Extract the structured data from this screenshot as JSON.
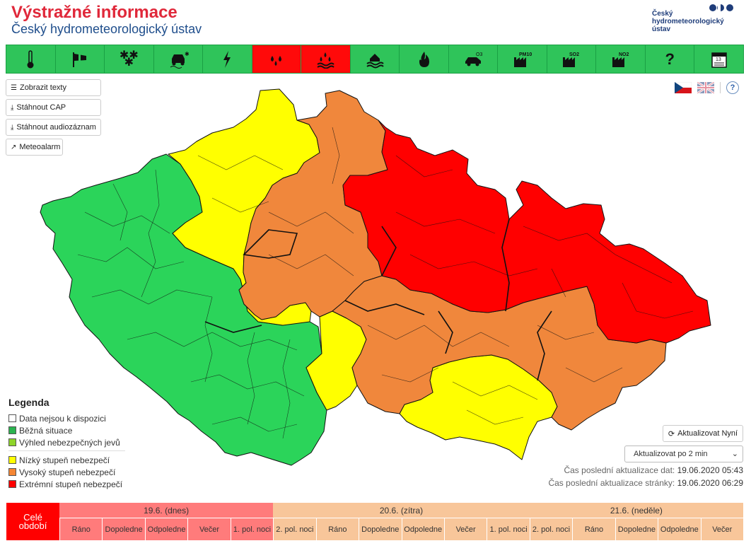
{
  "header": {
    "title": "Výstražné informace",
    "subtitle": "Český hydrometeorologický ústav",
    "logo_lines": [
      "Český",
      "hydrometeorologický",
      "ústav"
    ]
  },
  "toolbar": {
    "items": [
      {
        "icon": "thermometer-icon",
        "active": false
      },
      {
        "icon": "windsock-icon",
        "active": false
      },
      {
        "icon": "snowflakes-icon",
        "active": false
      },
      {
        "icon": "slippery-road-icon",
        "active": false
      },
      {
        "icon": "lightning-icon",
        "active": false
      },
      {
        "icon": "rain-drops-icon",
        "active": true
      },
      {
        "icon": "flood-icon",
        "active": true
      },
      {
        "icon": "flood-house-icon",
        "active": false
      },
      {
        "icon": "fire-icon",
        "active": false
      },
      {
        "icon": "ozone-car-icon",
        "active": false,
        "label": "O3"
      },
      {
        "icon": "pm10-factory-icon",
        "active": false,
        "label": "PM10"
      },
      {
        "icon": "so2-factory-icon",
        "active": false,
        "label": "SO2"
      },
      {
        "icon": "no2-factory-icon",
        "active": false,
        "label": "NO2"
      },
      {
        "icon": "question-icon",
        "active": false,
        "label": "?"
      },
      {
        "icon": "calendar-icon",
        "active": false,
        "label": "13"
      }
    ]
  },
  "buttons": {
    "show_texts": "Zobrazit texty",
    "download_cap": "Stáhnout CAP",
    "download_audio": "Stáhnout audiozáznam",
    "meteoalarm": "Meteoalarm",
    "refresh_now": "Aktualizovat Nyní",
    "auto_refresh": "Aktualizovat po 2 min"
  },
  "legend": {
    "title": "Legenda",
    "items": [
      {
        "label": "Data nejsou k dispozici",
        "color": "#ffffff"
      },
      {
        "label": "Běžná situace",
        "color": "#2bb34f"
      },
      {
        "label": "Výhled nebezpečných jevů",
        "color": "#8ed42a"
      },
      {
        "label": "Nízký stupeň nebezpečí",
        "color": "#ffff00"
      },
      {
        "label": "Vysoký stupeň nebezpečí",
        "color": "#f58634"
      },
      {
        "label": "Extrémní stupeň nebezpečí",
        "color": "#ff0000"
      }
    ]
  },
  "updates": {
    "data_label": "Čas poslední aktualizace dat:",
    "data_time": "19.06.2020 05:43",
    "page_label": "Čas poslední aktualizace stránky:",
    "page_time": "19.06.2020 06:29"
  },
  "timeline": {
    "whole_period": "Celé období",
    "days": [
      {
        "label": "19.6. (dnes)",
        "color": "#ff7b7b"
      },
      {
        "label": "20.6. (zítra)",
        "color": "#f8c69a"
      },
      {
        "label": "21.6. (neděle)",
        "color": "#f8c69a"
      }
    ],
    "periods": [
      {
        "label": "Ráno",
        "color": "#ff7b7b"
      },
      {
        "label": "Dopoledne",
        "color": "#ff7b7b"
      },
      {
        "label": "Odpoledne",
        "color": "#ff7b7b"
      },
      {
        "label": "Večer",
        "color": "#ff7b7b"
      },
      {
        "label": "1. pol. noci",
        "color": "#ff7b7b"
      },
      {
        "label": "2. pol. noci",
        "color": "#f8c69a"
      },
      {
        "label": "Ráno",
        "color": "#f8c69a"
      },
      {
        "label": "Dopoledne",
        "color": "#f8c69a"
      },
      {
        "label": "Odpoledne",
        "color": "#f8c69a"
      },
      {
        "label": "Večer",
        "color": "#f8c69a"
      },
      {
        "label": "1. pol. noci",
        "color": "#f8c69a"
      },
      {
        "label": "2. pol. noci",
        "color": "#f8c69a"
      },
      {
        "label": "Ráno",
        "color": "#f8c69a"
      },
      {
        "label": "Dopoledne",
        "color": "#f8c69a"
      },
      {
        "label": "Odpoledne",
        "color": "#f8c69a"
      },
      {
        "label": "Večer",
        "color": "#f8c69a"
      }
    ]
  },
  "map": {
    "regions": [
      {
        "level": "normal",
        "color": "#2bd45a"
      },
      {
        "level": "low",
        "color": "#ffff00"
      },
      {
        "level": "high",
        "color": "#f0873c"
      },
      {
        "level": "extreme",
        "color": "#ff0000"
      }
    ]
  }
}
